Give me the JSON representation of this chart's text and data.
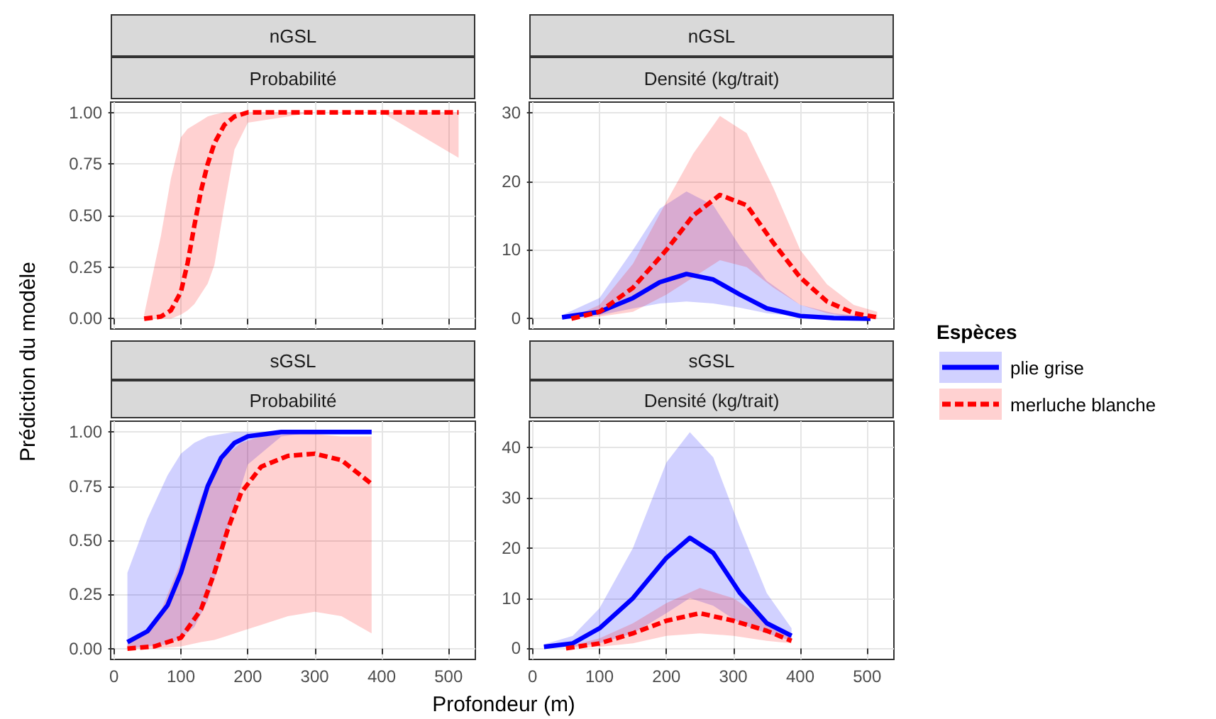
{
  "chart_data": [
    {
      "type": "line",
      "title": "nGSL",
      "subtitle": "Probabilité",
      "ylabel": "Prédiction du modèle",
      "xlim": [
        -5,
        540
      ],
      "xticks": [
        0,
        100,
        200,
        300,
        400,
        500
      ],
      "ylim": [
        -0.05,
        1.05
      ],
      "yticks": [
        {
          "value": 0,
          "label": "0.00"
        },
        {
          "value": 0.25,
          "label": "0.25"
        },
        {
          "value": 0.5,
          "label": "0.50"
        },
        {
          "value": 0.75,
          "label": "0.75"
        },
        {
          "value": 1,
          "label": "1.00"
        }
      ],
      "grid": true,
      "tick_labels": "y",
      "series": [
        {
          "color": "#ff0000",
          "line_style": "dashed",
          "x": [
            45,
            70,
            85,
            100,
            110,
            120,
            130,
            140,
            150,
            165,
            180,
            200,
            300,
            400,
            515
          ],
          "values": [
            0,
            0.01,
            0.04,
            0.13,
            0.27,
            0.45,
            0.62,
            0.75,
            0.85,
            0.94,
            0.98,
            1,
            1,
            1,
            1
          ],
          "lower": [
            0,
            0,
            0,
            0.02,
            0.04,
            0.07,
            0.12,
            0.17,
            0.26,
            0.55,
            0.82,
            0.95,
            1,
            1,
            0.78
          ],
          "upper": [
            0.02,
            0.4,
            0.68,
            0.88,
            0.92,
            0.94,
            0.96,
            0.98,
            0.99,
            1,
            1,
            1,
            1,
            1,
            1
          ]
        }
      ]
    },
    {
      "type": "line",
      "title": "nGSL",
      "subtitle": "Densité (kg/trait)",
      "xlim": [
        -5,
        540
      ],
      "xticks": [
        0,
        100,
        200,
        300,
        400,
        500
      ],
      "ylim": [
        -1.5,
        31.5
      ],
      "yticks": [
        0,
        10,
        20,
        30
      ],
      "grid": true,
      "tick_labels": "y",
      "legend": "right",
      "legend_title": "Espèces",
      "series": [
        {
          "name": "plie grise",
          "color": "#0000ff",
          "line_style": "solid",
          "x": [
            44,
            100,
            150,
            190,
            230,
            270,
            310,
            350,
            400,
            450,
            505
          ],
          "values": [
            0.2,
            1,
            3,
            5.3,
            6.5,
            5.7,
            3.5,
            1.5,
            0.4,
            0.1,
            0
          ],
          "lower": [
            0,
            0.5,
            1.5,
            2.2,
            2.5,
            2.2,
            1.6,
            0.8,
            0.3,
            0.1,
            0
          ],
          "upper": [
            0.5,
            3,
            10,
            16,
            18.5,
            16.5,
            10.5,
            5.5,
            2,
            0.8,
            0.2
          ]
        },
        {
          "name": "merluche blanche",
          "color": "#ff0000",
          "line_style": "dashed",
          "x": [
            58,
            100,
            150,
            200,
            240,
            280,
            320,
            360,
            400,
            440,
            480,
            515
          ],
          "values": [
            0,
            1,
            4.5,
            10,
            15,
            18,
            16.5,
            11,
            6,
            2.5,
            0.8,
            0.2
          ],
          "lower": [
            0,
            0.3,
            1,
            3.5,
            6,
            8.5,
            7.5,
            4.5,
            2,
            0.8,
            0.2,
            0
          ],
          "upper": [
            0.2,
            2,
            8,
            17,
            24,
            29.5,
            27,
            19,
            10,
            5,
            2,
            1
          ]
        }
      ]
    },
    {
      "type": "line",
      "title": "sGSL",
      "subtitle": "Probabilité",
      "xlabel": "Profondeur (m)",
      "xlim": [
        -5,
        540
      ],
      "xticks": [
        0,
        100,
        200,
        300,
        400,
        500
      ],
      "ylim": [
        -0.05,
        1.05
      ],
      "yticks": [
        {
          "value": 0,
          "label": "0.00"
        },
        {
          "value": 0.25,
          "label": "0.25"
        },
        {
          "value": 0.5,
          "label": "0.50"
        },
        {
          "value": 0.75,
          "label": "0.75"
        },
        {
          "value": 1,
          "label": "1.00"
        }
      ],
      "grid": true,
      "series": [
        {
          "color": "#0000ff",
          "line_style": "solid",
          "x": [
            20,
            50,
            80,
            100,
            120,
            140,
            160,
            180,
            200,
            250,
            300,
            385
          ],
          "values": [
            0.03,
            0.08,
            0.2,
            0.35,
            0.55,
            0.75,
            0.88,
            0.95,
            0.98,
            1,
            1,
            1
          ],
          "lower": [
            0,
            0.01,
            0.02,
            0.05,
            0.1,
            0.22,
            0.42,
            0.65,
            0.85,
            0.98,
            1,
            1
          ],
          "upper": [
            0.35,
            0.6,
            0.8,
            0.9,
            0.95,
            0.98,
            0.99,
            1,
            1,
            1,
            1,
            1
          ]
        },
        {
          "color": "#ff0000",
          "line_style": "dashed",
          "x": [
            20,
            60,
            100,
            130,
            150,
            170,
            190,
            220,
            260,
            300,
            340,
            385
          ],
          "values": [
            0,
            0.01,
            0.05,
            0.18,
            0.35,
            0.55,
            0.72,
            0.84,
            0.89,
            0.9,
            0.87,
            0.76
          ],
          "lower": [
            0,
            0,
            0.01,
            0.03,
            0.04,
            0.06,
            0.08,
            0.11,
            0.15,
            0.17,
            0.15,
            0.07
          ],
          "upper": [
            0.02,
            0.1,
            0.4,
            0.7,
            0.82,
            0.9,
            0.95,
            0.98,
            0.99,
            0.99,
            0.98,
            0.98
          ]
        }
      ]
    },
    {
      "type": "line",
      "title": "sGSL",
      "subtitle": "Densité (kg/trait)",
      "xlim": [
        -5,
        540
      ],
      "xticks": [
        0,
        100,
        200,
        300,
        400,
        500
      ],
      "ylim": [
        -2.2,
        45.2
      ],
      "yticks": [
        0,
        10,
        20,
        30,
        40
      ],
      "grid": true,
      "series": [
        {
          "color": "#0000ff",
          "line_style": "solid",
          "x": [
            17,
            60,
            100,
            150,
            200,
            235,
            270,
            310,
            350,
            387
          ],
          "values": [
            0.3,
            1,
            4,
            10,
            18,
            22,
            19,
            11,
            5,
            2.5
          ],
          "lower": [
            0,
            0.3,
            1,
            3,
            7,
            10,
            8.5,
            5,
            3,
            1.5
          ],
          "upper": [
            0.8,
            2.5,
            8,
            20,
            37,
            43,
            38,
            24,
            11,
            4
          ]
        },
        {
          "color": "#ff0000",
          "line_style": "dashed",
          "x": [
            50,
            100,
            150,
            200,
            250,
            300,
            350,
            387
          ],
          "values": [
            0,
            1,
            3,
            5.5,
            7,
            5.5,
            3.5,
            1.5
          ],
          "lower": [
            0,
            0.3,
            1,
            2.5,
            3,
            2.5,
            1.5,
            1
          ],
          "upper": [
            0.3,
            2,
            5,
            9,
            12,
            10,
            5.5,
            2.5
          ]
        }
      ]
    }
  ]
}
